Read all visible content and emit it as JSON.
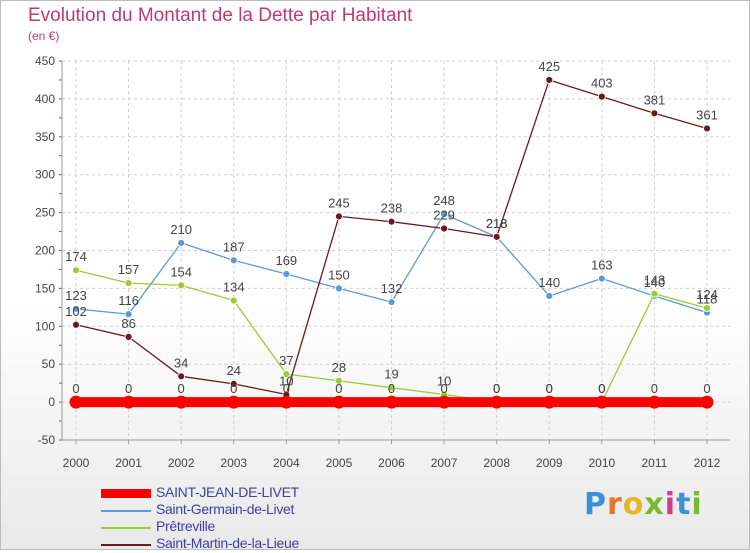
{
  "chart_data": {
    "type": "line",
    "title": "Evolution du Montant de la Dette par Habitant",
    "subtitle": "(en €)",
    "x": [
      "2000",
      "2001",
      "2002",
      "2003",
      "2004",
      "2005",
      "2006",
      "2007",
      "2008",
      "2009",
      "2010",
      "2011",
      "2012"
    ],
    "ylim": [
      -50,
      450
    ],
    "yticks": [
      -50,
      0,
      50,
      100,
      150,
      200,
      250,
      300,
      350,
      400,
      450
    ],
    "grid": true,
    "legend_position": "bottom-left",
    "series": [
      {
        "name": "SAINT-JEAN-DE-LIVET",
        "color": "#ff0000",
        "values": [
          0,
          0,
          0,
          0,
          0,
          0,
          0,
          0,
          0,
          0,
          0,
          0,
          0
        ]
      },
      {
        "name": "Saint-Germain-de-Livet",
        "color": "#5b9bd5",
        "values": [
          123,
          116,
          210,
          187,
          169,
          150,
          132,
          248,
          218,
          140,
          163,
          140,
          118
        ]
      },
      {
        "name": "Prêtreville",
        "color": "#9acd32",
        "values": [
          174,
          157,
          154,
          134,
          37,
          28,
          19,
          10,
          0,
          0,
          0,
          143,
          124
        ]
      },
      {
        "name": "Saint-Martin-de-la-Lieue",
        "color": "#6b1a1a",
        "values": [
          102,
          86,
          34,
          24,
          10,
          245,
          238,
          229,
          218,
          425,
          403,
          381,
          361
        ]
      }
    ]
  },
  "logo": {
    "letters": [
      "P",
      "r",
      "o",
      "x",
      "i",
      "t",
      "i"
    ]
  }
}
